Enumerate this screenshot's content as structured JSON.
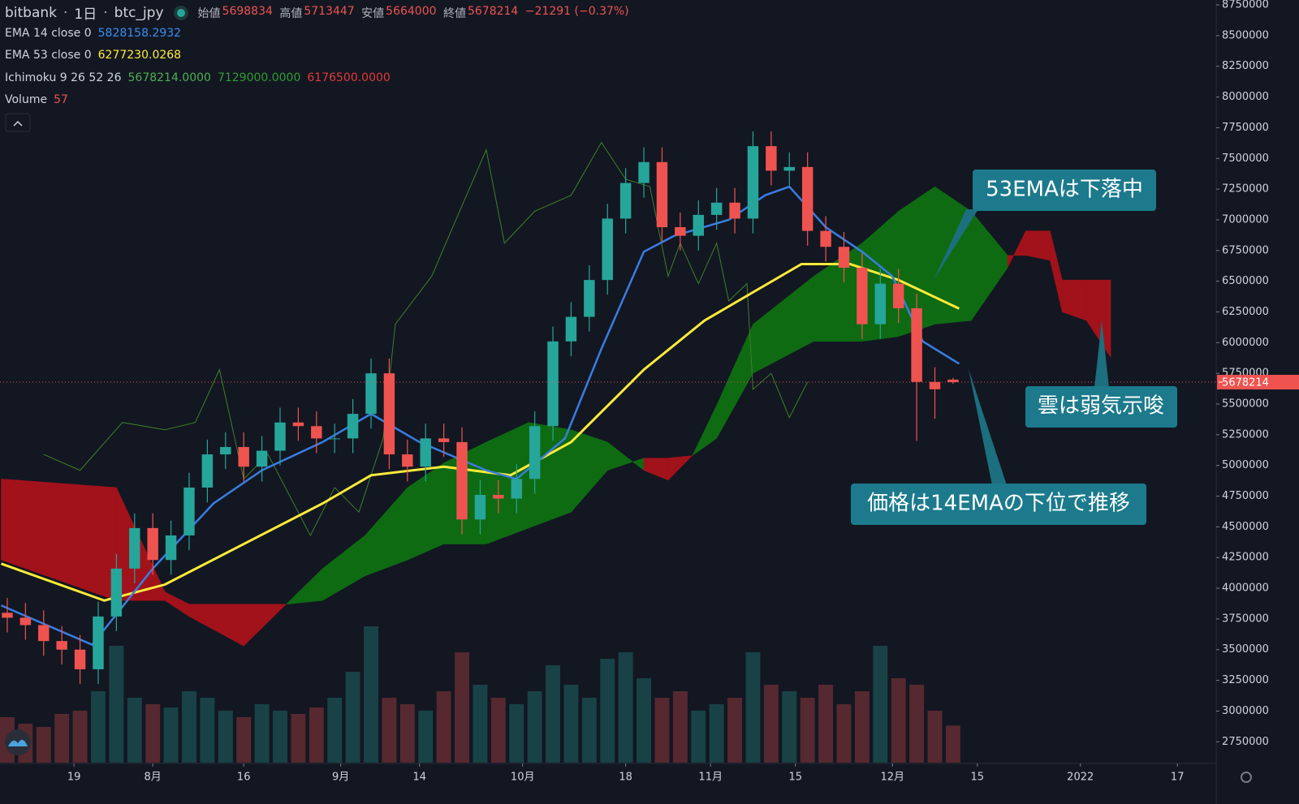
{
  "chart_data": {
    "type": "candlestick",
    "header": {
      "symbol": "bitbank",
      "interval": "1日",
      "pair": "btc_jpy",
      "open_label": "始値",
      "high_label": "高値",
      "low_label": "安値",
      "close_label": "終値",
      "change": "−21291 (−0.37%)"
    },
    "x": [
      -24,
      -21,
      -18,
      -15,
      -12,
      -9,
      -6,
      -3,
      0,
      3,
      6,
      9,
      12,
      15,
      18,
      21,
      24,
      27,
      30,
      33,
      36,
      39,
      42,
      45,
      48,
      51,
      54,
      57,
      60,
      63,
      66,
      69,
      72,
      75,
      78,
      81,
      84,
      87,
      90,
      93,
      96,
      99,
      102,
      105,
      108,
      111,
      114,
      117,
      120,
      123,
      126,
      129,
      132
    ],
    "open": [
      3800000,
      3760000,
      3700000,
      3570000,
      3500000,
      3340000,
      3770000,
      4160000,
      4490000,
      4230000,
      4430000,
      4820000,
      5090000,
      5150000,
      4990000,
      5120000,
      5350000,
      5320000,
      5220000,
      5220000,
      5420000,
      5750000,
      5090000,
      4990000,
      5220000,
      5190000,
      4560000,
      4760000,
      4730000,
      4890000,
      5320000,
      6010000,
      6210000,
      6510000,
      7010000,
      7300000,
      7470000,
      6940000,
      6870000,
      7040000,
      7140000,
      7010000,
      7600000,
      7400000,
      7430000,
      6910000,
      6780000,
      6610000,
      6150000,
      6480000,
      6280000,
      5680000,
      5698834
    ],
    "high": [
      3920000,
      3880000,
      3820000,
      3690000,
      3620000,
      3890000,
      4280000,
      4610000,
      4610000,
      4550000,
      4940000,
      5210000,
      5270000,
      5270000,
      5240000,
      5470000,
      5470000,
      5440000,
      5340000,
      5540000,
      5870000,
      5870000,
      5210000,
      5340000,
      5340000,
      5310000,
      4880000,
      4880000,
      5010000,
      5440000,
      6130000,
      6330000,
      6630000,
      7130000,
      7420000,
      7590000,
      7590000,
      7060000,
      7160000,
      7260000,
      7260000,
      7720000,
      7720000,
      7550000,
      7550000,
      7030000,
      6900000,
      6730000,
      6600000,
      6600000,
      6400000,
      5800000,
      5713447
    ],
    "low": [
      3640000,
      3580000,
      3450000,
      3380000,
      3220000,
      3220000,
      3650000,
      4040000,
      4110000,
      4110000,
      4310000,
      4700000,
      4970000,
      4870000,
      4870000,
      5000000,
      5200000,
      5100000,
      5100000,
      5100000,
      5300000,
      4970000,
      4870000,
      4870000,
      5070000,
      4440000,
      4440000,
      4610000,
      4610000,
      4770000,
      5200000,
      5890000,
      6090000,
      6390000,
      6890000,
      7180000,
      6820000,
      6750000,
      6750000,
      6920000,
      6890000,
      6890000,
      7280000,
      7280000,
      6790000,
      6660000,
      6490000,
      6030000,
      6030000,
      6160000,
      5200000,
      5380000,
      5664000
    ],
    "close": [
      3760000,
      3700000,
      3570000,
      3500000,
      3340000,
      3770000,
      4160000,
      4490000,
      4230000,
      4430000,
      4820000,
      5090000,
      5150000,
      4990000,
      5120000,
      5350000,
      5320000,
      5220000,
      5220000,
      5420000,
      5750000,
      5090000,
      4990000,
      5220000,
      5190000,
      4560000,
      4760000,
      4730000,
      4890000,
      5320000,
      6010000,
      6210000,
      6510000,
      7010000,
      7300000,
      7470000,
      6940000,
      6870000,
      7040000,
      7140000,
      7010000,
      7600000,
      7400000,
      7430000,
      6910000,
      6780000,
      6610000,
      6150000,
      6480000,
      6280000,
      5680000,
      5620000,
      5678214
    ],
    "up_color": "#26a69a",
    "down_color": "#ef5350",
    "ema14": {
      "name": "EMA 14 close 0",
      "color": "#3a7de0",
      "x": [
        -25,
        -10,
        0,
        10,
        18,
        28,
        36,
        44,
        55,
        60,
        68,
        74,
        81,
        86,
        95,
        101,
        105,
        111,
        117,
        122,
        127,
        133
      ],
      "values": [
        3860000,
        3540000,
        4160000,
        4690000,
        4960000,
        5190000,
        5420000,
        5190000,
        4960000,
        4890000,
        5220000,
        5950000,
        6740000,
        6870000,
        7000000,
        7200000,
        7270000,
        6940000,
        6740000,
        6540000,
        6010000,
        5828158.2932
      ]
    },
    "ema53": {
      "name": "EMA 53 close 0",
      "color": "#ffeb3b",
      "x": [
        -25,
        -8,
        2,
        15,
        28,
        36,
        48,
        59,
        69,
        81,
        91,
        99,
        107,
        115,
        123,
        133
      ],
      "values": [
        4200000,
        3900000,
        4030000,
        4360000,
        4690000,
        4920000,
        4990000,
        4920000,
        5190000,
        5780000,
        6180000,
        6410000,
        6640000,
        6640000,
        6510000,
        6277230.0268
      ]
    },
    "ichimoku": {
      "name": "Ichimoku 9 26 52 26",
      "values_text": [
        "5678214.0000",
        "7129000.0000",
        "6176500.0000"
      ],
      "span_x": [
        -25,
        -6,
        2,
        6,
        15,
        22,
        28,
        35,
        42,
        48,
        55,
        62,
        69,
        75,
        81,
        85,
        89,
        93,
        99,
        109,
        117,
        123,
        129,
        135,
        141,
        144,
        148,
        150,
        154,
        158
      ],
      "span_a": [
        4230000,
        3900000,
        3900000,
        3770000,
        3530000,
        3870000,
        4160000,
        4430000,
        4820000,
        5020000,
        5190000,
        5350000,
        5290000,
        5190000,
        4960000,
        4880000,
        5080000,
        5490000,
        6150000,
        6540000,
        6810000,
        7070000,
        7270000,
        7070000,
        6710000,
        6710000,
        6670000,
        6250000,
        6180000,
        5880000
      ],
      "span_b": [
        4890000,
        4820000,
        3970000,
        3870000,
        3870000,
        3870000,
        3900000,
        4100000,
        4230000,
        4360000,
        4360000,
        4490000,
        4620000,
        4960000,
        5060000,
        5060000,
        5080000,
        5220000,
        5750000,
        6010000,
        6010000,
        6050000,
        6150000,
        6180000,
        6610000,
        6910000,
        6910000,
        6510000,
        6510000,
        6510000
      ],
      "chikou_x": [
        -18,
        -12,
        -5,
        2,
        7,
        11,
        15,
        19,
        26,
        30,
        34,
        38,
        40,
        46,
        50,
        55,
        58,
        63,
        69,
        74,
        78,
        82,
        85,
        87,
        90,
        93,
        95,
        98,
        99,
        102,
        105,
        108
      ],
      "chikou": [
        5090000,
        4960000,
        5350000,
        5290000,
        5350000,
        5780000,
        4890000,
        5090000,
        4430000,
        4820000,
        4620000,
        5220000,
        6150000,
        6540000,
        7000000,
        7570000,
        6810000,
        7070000,
        7200000,
        7630000,
        7330000,
        7270000,
        6540000,
        6810000,
        6480000,
        6810000,
        6340000,
        6480000,
        5620000,
        5750000,
        5390000,
        5680000
      ],
      "up_color": "#0e6b12",
      "down_color": "#a1121b",
      "chikou_color": "#3f7f2a"
    },
    "volume": {
      "name": "Volume",
      "vlim": [
        0,
        250
      ],
      "values": [
        70,
        60,
        55,
        75,
        80,
        110,
        180,
        100,
        90,
        85,
        110,
        100,
        80,
        70,
        90,
        80,
        75,
        85,
        100,
        140,
        210,
        100,
        90,
        80,
        110,
        170,
        120,
        100,
        90,
        110,
        150,
        120,
        100,
        160,
        170,
        130,
        100,
        110,
        80,
        90,
        100,
        170,
        120,
        110,
        100,
        120,
        90,
        110,
        180,
        130,
        120,
        80,
        57
      ]
    },
    "xlim": [
      -25.2,
      175.4
    ],
    "ylim": [
      2580000,
      8790000
    ],
    "xticks": [
      {
        "value": -13,
        "label": "19"
      },
      {
        "value": 0,
        "label": "8月"
      },
      {
        "value": 15,
        "label": "16"
      },
      {
        "value": 31,
        "label": "9月"
      },
      {
        "value": 44,
        "label": "14"
      },
      {
        "value": 61,
        "label": "10月"
      },
      {
        "value": 78,
        "label": "18"
      },
      {
        "value": 92,
        "label": "11月"
      },
      {
        "value": 106,
        "label": "15"
      },
      {
        "value": 122,
        "label": "12月"
      },
      {
        "value": 136,
        "label": "15"
      },
      {
        "value": 153,
        "label": "2022"
      },
      {
        "value": 169,
        "label": "17"
      }
    ],
    "yticks": [
      2750000,
      3000000,
      3250000,
      3500000,
      3750000,
      4000000,
      4250000,
      4500000,
      4750000,
      5000000,
      5250000,
      5500000,
      5750000,
      6000000,
      6250000,
      6500000,
      6750000,
      7000000,
      7250000,
      7500000,
      7750000,
      8000000,
      8250000,
      8500000,
      8750000
    ],
    "annotations": [
      "53EMAは下落中",
      "雲は弱気示唆",
      "価格は14EMAの下位で推移"
    ]
  }
}
